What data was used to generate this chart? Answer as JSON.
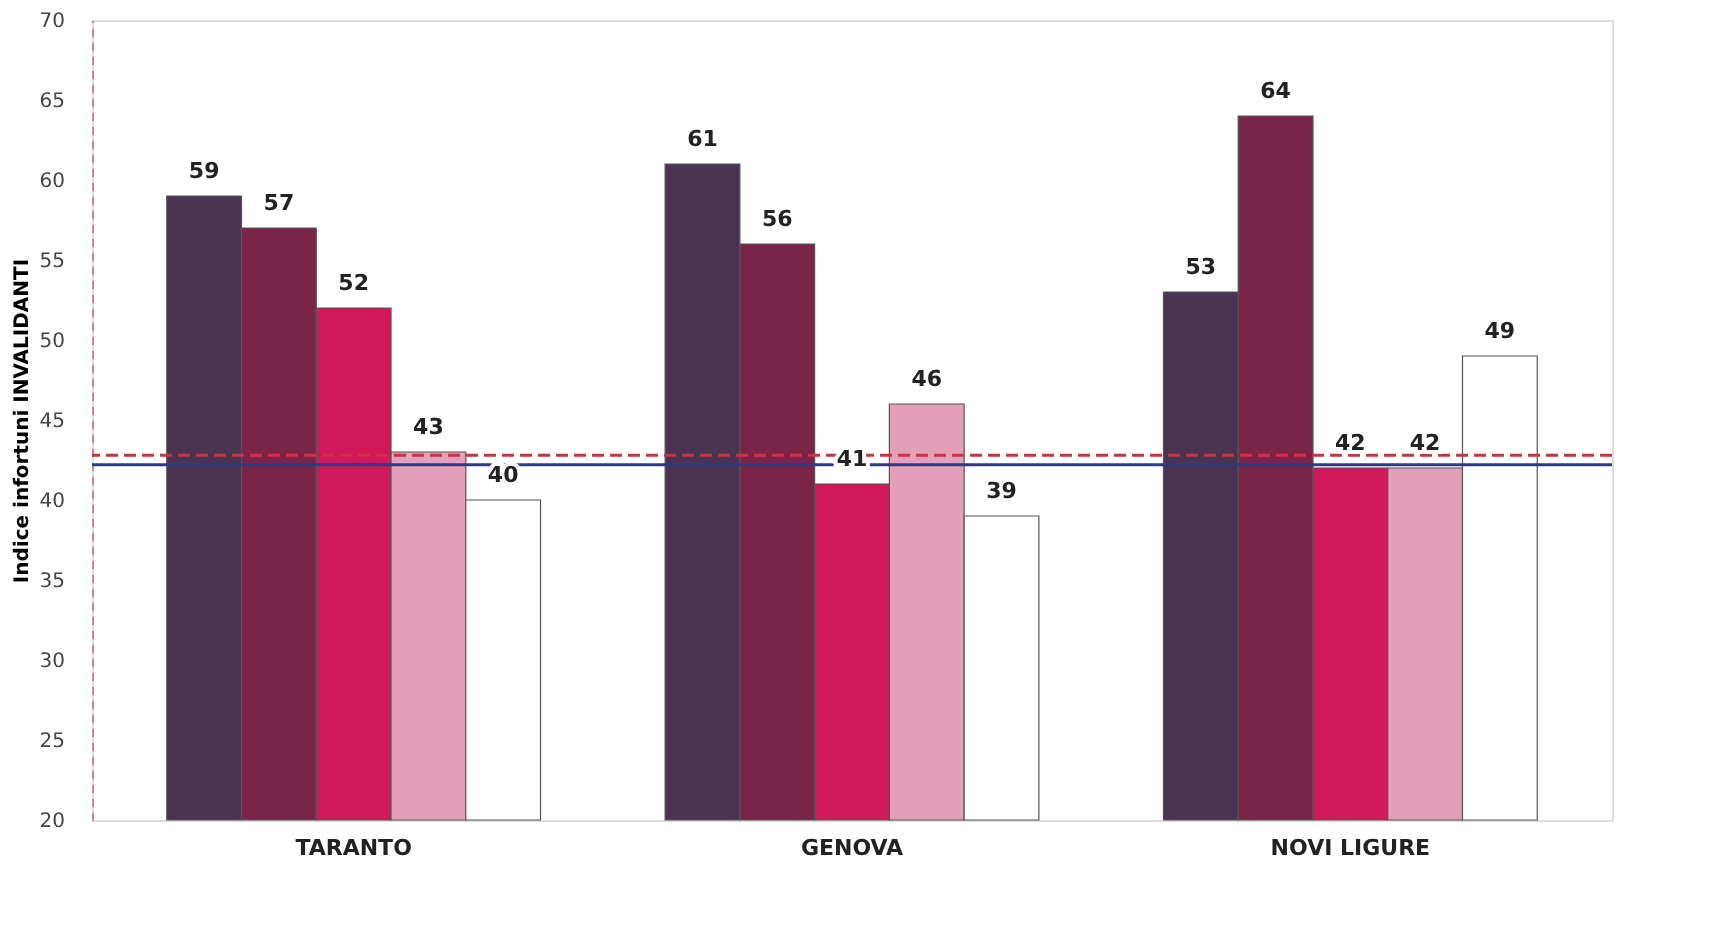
{
  "chart_data": {
    "type": "bar",
    "ylabel": "Indice infortuni INVALIDANTI",
    "categories": [
      "TARANTO",
      "GENOVA",
      "NOVI LIGURE"
    ],
    "series": [
      {
        "color": "#4a3350",
        "values": [
          59,
          61,
          53
        ]
      },
      {
        "color": "#7a2448",
        "values": [
          57,
          56,
          64
        ]
      },
      {
        "color": "#d0185a",
        "values": [
          52,
          41,
          42
        ]
      },
      {
        "color": "#e4a0b8",
        "values": [
          43,
          46,
          42
        ]
      },
      {
        "color": "#ffffff",
        "values": [
          40,
          39,
          49
        ]
      }
    ],
    "ylim": [
      20,
      70
    ],
    "yticks": [
      20,
      25,
      30,
      35,
      40,
      45,
      50,
      55,
      60,
      65,
      70
    ],
    "ref_lines": [
      {
        "axis": "y",
        "value": 42.8,
        "color": "#d03040",
        "line_style": "dashed"
      },
      {
        "axis": "y",
        "value": 42.2,
        "color": "#303a80",
        "line_style": "solid"
      }
    ],
    "data_labels": true,
    "grid": false
  }
}
